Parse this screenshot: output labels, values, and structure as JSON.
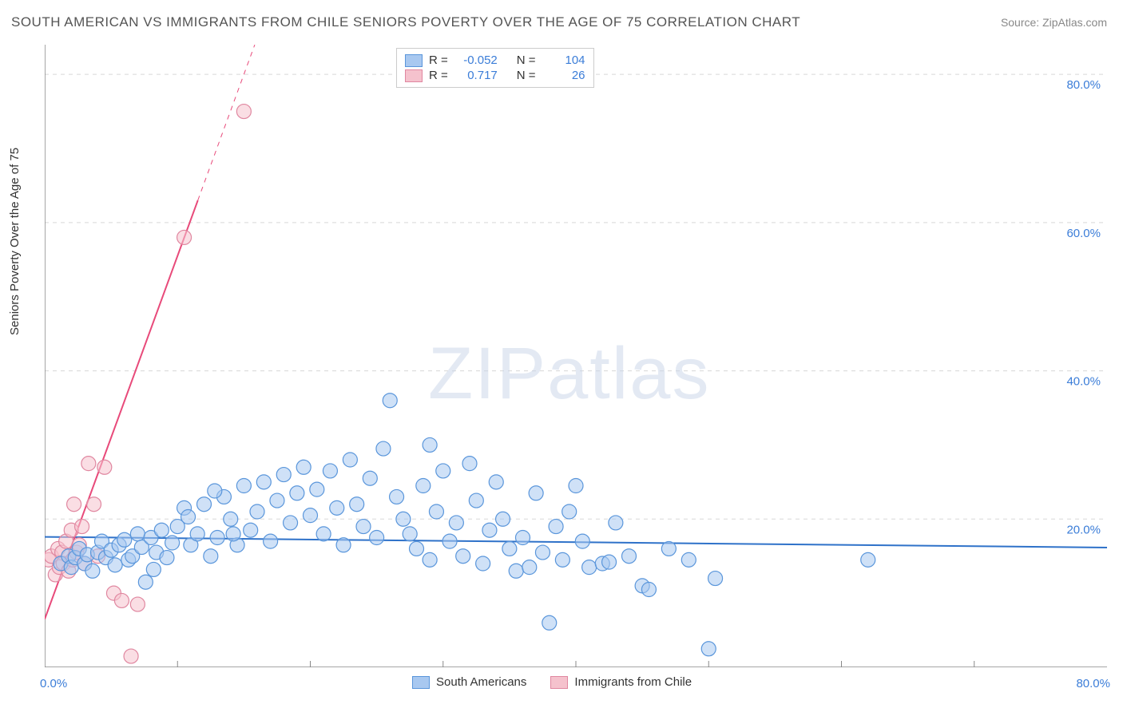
{
  "title": "SOUTH AMERICAN VS IMMIGRANTS FROM CHILE SENIORS POVERTY OVER THE AGE OF 75 CORRELATION CHART",
  "source": "Source: ZipAtlas.com",
  "ylabel": "Seniors Poverty Over the Age of 75",
  "watermark": {
    "zip": "ZIP",
    "atlas": "atlas"
  },
  "chart": {
    "type": "scatter-correlation",
    "xlim": [
      0,
      80
    ],
    "ylim": [
      0,
      84
    ],
    "x_tick_origin": "0.0%",
    "x_tick_end": "80.0%",
    "y_ticks": [
      20,
      40,
      60,
      80
    ],
    "y_tick_labels": [
      "20.0%",
      "40.0%",
      "60.0%",
      "80.0%"
    ],
    "grid_color": "#d8d8d8",
    "axis_color": "#888888",
    "background_color": "#ffffff",
    "tick_label_color": "#3b7dd8",
    "marker_radius": 9,
    "marker_opacity": 0.55,
    "series": [
      {
        "name": "South Americans",
        "fill": "#a8c8f0",
        "stroke": "#5a96db",
        "trend": {
          "slope": -0.018,
          "intercept": 17.6,
          "style": "solid",
          "color": "#2f72c9",
          "width": 2
        },
        "stats": {
          "r": "-0.052",
          "n": "104"
        },
        "points": [
          [
            1.2,
            14.0
          ],
          [
            1.8,
            15.0
          ],
          [
            2.0,
            13.5
          ],
          [
            2.3,
            14.8
          ],
          [
            2.6,
            16.0
          ],
          [
            3.0,
            14.0
          ],
          [
            3.2,
            15.2
          ],
          [
            3.6,
            13.0
          ],
          [
            4.0,
            15.5
          ],
          [
            4.3,
            17.0
          ],
          [
            4.6,
            14.8
          ],
          [
            5.0,
            15.8
          ],
          [
            5.3,
            13.8
          ],
          [
            5.6,
            16.5
          ],
          [
            6.0,
            17.2
          ],
          [
            6.3,
            14.5
          ],
          [
            6.6,
            15.0
          ],
          [
            7.0,
            18.0
          ],
          [
            7.3,
            16.2
          ],
          [
            7.6,
            11.5
          ],
          [
            8.0,
            17.5
          ],
          [
            8.4,
            15.5
          ],
          [
            8.8,
            18.5
          ],
          [
            9.2,
            14.8
          ],
          [
            9.6,
            16.8
          ],
          [
            10.0,
            19.0
          ],
          [
            10.5,
            21.5
          ],
          [
            11.0,
            16.5
          ],
          [
            11.5,
            18.0
          ],
          [
            12.0,
            22.0
          ],
          [
            12.5,
            15.0
          ],
          [
            13.0,
            17.5
          ],
          [
            13.5,
            23.0
          ],
          [
            14.0,
            20.0
          ],
          [
            14.5,
            16.5
          ],
          [
            15.0,
            24.5
          ],
          [
            15.5,
            18.5
          ],
          [
            16.0,
            21.0
          ],
          [
            16.5,
            25.0
          ],
          [
            17.0,
            17.0
          ],
          [
            17.5,
            22.5
          ],
          [
            18.0,
            26.0
          ],
          [
            18.5,
            19.5
          ],
          [
            19.0,
            23.5
          ],
          [
            19.5,
            27.0
          ],
          [
            20.0,
            20.5
          ],
          [
            20.5,
            24.0
          ],
          [
            21.0,
            18.0
          ],
          [
            21.5,
            26.5
          ],
          [
            22.0,
            21.5
          ],
          [
            22.5,
            16.5
          ],
          [
            23.0,
            28.0
          ],
          [
            23.5,
            22.0
          ],
          [
            24.0,
            19.0
          ],
          [
            24.5,
            25.5
          ],
          [
            25.0,
            17.5
          ],
          [
            25.5,
            29.5
          ],
          [
            26.0,
            36.0
          ],
          [
            26.5,
            23.0
          ],
          [
            27.0,
            20.0
          ],
          [
            27.5,
            18.0
          ],
          [
            28.0,
            16.0
          ],
          [
            28.5,
            24.5
          ],
          [
            29.0,
            14.5
          ],
          [
            29.5,
            21.0
          ],
          [
            30.0,
            26.5
          ],
          [
            30.5,
            17.0
          ],
          [
            31.0,
            19.5
          ],
          [
            31.5,
            15.0
          ],
          [
            32.0,
            27.5
          ],
          [
            32.5,
            22.5
          ],
          [
            33.0,
            14.0
          ],
          [
            33.5,
            18.5
          ],
          [
            34.0,
            25.0
          ],
          [
            34.5,
            20.0
          ],
          [
            35.0,
            16.0
          ],
          [
            36.0,
            17.5
          ],
          [
            37.0,
            23.5
          ],
          [
            37.5,
            15.5
          ],
          [
            38.0,
            6.0
          ],
          [
            38.5,
            19.0
          ],
          [
            39.0,
            14.5
          ],
          [
            39.5,
            21.0
          ],
          [
            40.0,
            24.5
          ],
          [
            40.5,
            17.0
          ],
          [
            41.0,
            13.5
          ],
          [
            42.0,
            14.0
          ],
          [
            42.5,
            14.2
          ],
          [
            43.0,
            19.5
          ],
          [
            44.0,
            15.0
          ],
          [
            45.0,
            11.0
          ],
          [
            45.5,
            10.5
          ],
          [
            47.0,
            16.0
          ],
          [
            48.5,
            14.5
          ],
          [
            50.0,
            2.5
          ],
          [
            50.5,
            12.0
          ],
          [
            62.0,
            14.5
          ],
          [
            35.5,
            13.0
          ],
          [
            36.5,
            13.5
          ],
          [
            29.0,
            30.0
          ],
          [
            10.8,
            20.3
          ],
          [
            12.8,
            23.8
          ],
          [
            14.2,
            18.0
          ],
          [
            8.2,
            13.2
          ]
        ]
      },
      {
        "name": "Immigrants from Chile",
        "fill": "#f5c2cd",
        "stroke": "#e087a0",
        "trend": {
          "slope": 4.9,
          "intercept": 6.5,
          "style": "solid",
          "color": "#e84a7a",
          "width": 2,
          "dashed_upper": true
        },
        "stats": {
          "r": "0.717",
          "n": "26"
        },
        "points": [
          [
            0.3,
            14.5
          ],
          [
            0.5,
            15.0
          ],
          [
            0.8,
            12.5
          ],
          [
            1.0,
            16.0
          ],
          [
            1.1,
            13.5
          ],
          [
            1.3,
            15.5
          ],
          [
            1.4,
            14.0
          ],
          [
            1.6,
            17.0
          ],
          [
            1.8,
            13.0
          ],
          [
            2.0,
            18.5
          ],
          [
            2.1,
            14.5
          ],
          [
            2.2,
            22.0
          ],
          [
            2.4,
            15.5
          ],
          [
            2.6,
            16.5
          ],
          [
            2.8,
            19.0
          ],
          [
            3.0,
            14.0
          ],
          [
            3.3,
            27.5
          ],
          [
            3.7,
            22.0
          ],
          [
            4.0,
            15.0
          ],
          [
            4.5,
            27.0
          ],
          [
            5.2,
            10.0
          ],
          [
            5.8,
            9.0
          ],
          [
            6.5,
            1.5
          ],
          [
            7.0,
            8.5
          ],
          [
            10.5,
            58.0
          ],
          [
            15.0,
            75.0
          ]
        ]
      }
    ]
  },
  "legend_top": {
    "r_label": "R =",
    "n_label": "N ="
  },
  "legend_bottom": {
    "series1": "South Americans",
    "series2": "Immigrants from Chile"
  }
}
